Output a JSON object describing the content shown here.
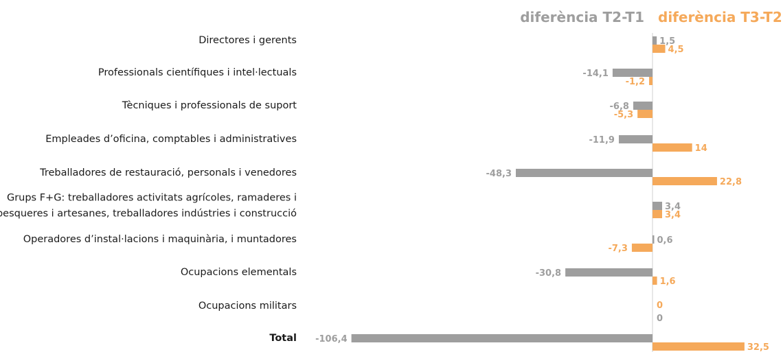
{
  "chart_data": {
    "type": "bar",
    "orientation": "horizontal",
    "legend_position": "top-right",
    "grid": false,
    "categories": [
      "Directores i gerents",
      "Professionals científiques i intel·lectuals",
      "Tècniques i professionals de suport",
      "Empleades d’oficina, comptables i administratives",
      "Treballadores de restauració, personals i venedores",
      "Grups F+G: treballadores activitats agrícoles, ramaderes i pesqueres i artesanes, treballadores indústries i construcció",
      "Operadores d’instal·lacions i maquinària, i muntadores",
      "Ocupacions elementals",
      "Ocupacions militars",
      "Total"
    ],
    "category_lines": [
      [
        "Directores i gerents"
      ],
      [
        "Professionals científiques i intel·lectuals"
      ],
      [
        "Tècniques i professionals de suport"
      ],
      [
        "Empleades d’oficina, comptables i administratives"
      ],
      [
        "Treballadores de restauració, personals i venedores"
      ],
      [
        "Grups F+G: treballadores activitats agrícoles, ramaderes i",
        "pesqueres i artesanes, treballadores indústries i construcció"
      ],
      [
        "Operadores d’instal·lacions i maquinària, i muntadores"
      ],
      [
        "Ocupacions elementals"
      ],
      [
        "Ocupacions militars"
      ],
      [
        "Total"
      ]
    ],
    "series": [
      {
        "name": "diferència T2-T1",
        "color": "#9e9e9e",
        "values": [
          1.5,
          -14.1,
          -6.8,
          -11.9,
          -48.3,
          3.4,
          0.6,
          -30.8,
          0,
          -106.4
        ],
        "labels": [
          "1,5",
          "-14,1",
          "-6,8",
          "-11,9",
          "-48,3",
          "3,4",
          "0,6",
          "-30,8",
          "0",
          "-106,4"
        ]
      },
      {
        "name": "diferència T3-T2",
        "color": "#f5a95a",
        "values": [
          4.5,
          -1.2,
          -5.3,
          14,
          22.8,
          3.4,
          -7.3,
          1.6,
          0,
          32.5
        ],
        "labels": [
          "4,5",
          "-1,2",
          "-5,3",
          "14",
          "22,8",
          "3,4",
          "-7,3",
          "1,6",
          "0",
          "32,5"
        ]
      }
    ]
  }
}
